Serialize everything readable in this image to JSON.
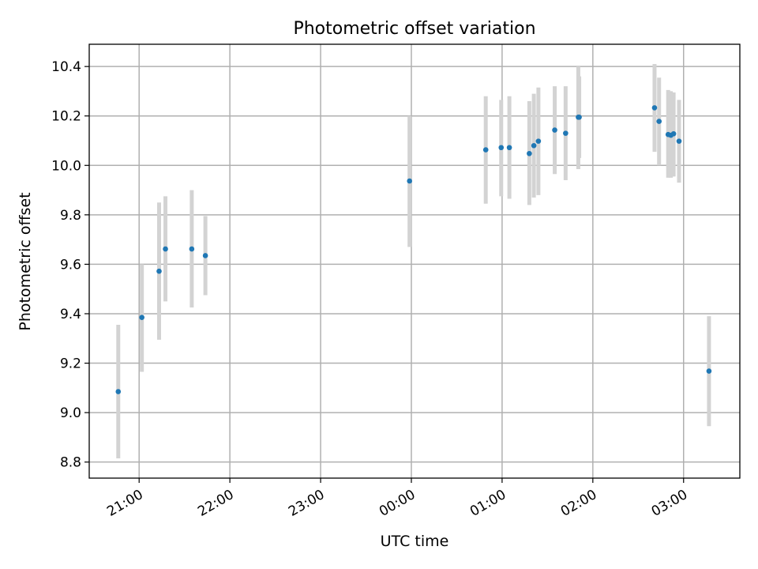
{
  "chart_data": {
    "type": "scatter",
    "title": "Photometric offset variation",
    "xlabel": "UTC time",
    "ylabel": "Photometric offset",
    "x_unit": "hours UTC (hours after 24 are on the following day)",
    "xlim": [
      20.45,
      27.62
    ],
    "ylim": [
      8.735,
      10.49
    ],
    "x_ticks": [
      {
        "value": 21,
        "label": "21:00"
      },
      {
        "value": 22,
        "label": "22:00"
      },
      {
        "value": 23,
        "label": "23:00"
      },
      {
        "value": 24,
        "label": "00:00"
      },
      {
        "value": 25,
        "label": "01:00"
      },
      {
        "value": 26,
        "label": "02:00"
      },
      {
        "value": 27,
        "label": "03:00"
      }
    ],
    "y_ticks": [
      {
        "value": 8.8,
        "label": "8.8"
      },
      {
        "value": 9.0,
        "label": "9.0"
      },
      {
        "value": 9.2,
        "label": "9.2"
      },
      {
        "value": 9.4,
        "label": "9.4"
      },
      {
        "value": 9.6,
        "label": "9.6"
      },
      {
        "value": 9.8,
        "label": "9.8"
      },
      {
        "value": 10.0,
        "label": "10.0"
      },
      {
        "value": 10.2,
        "label": "10.2"
      },
      {
        "value": 10.4,
        "label": "10.4"
      }
    ],
    "grid": true,
    "colors": {
      "point": "#1f77b4",
      "errorbar": "#d3d3d3",
      "grid": "#b0b0b0"
    },
    "points": [
      {
        "x": 20.77,
        "y": 9.085,
        "yerr_low": 8.815,
        "yerr_high": 9.355
      },
      {
        "x": 21.03,
        "y": 9.385,
        "yerr_low": 9.165,
        "yerr_high": 9.6
      },
      {
        "x": 21.22,
        "y": 9.572,
        "yerr_low": 9.295,
        "yerr_high": 9.85
      },
      {
        "x": 21.29,
        "y": 9.662,
        "yerr_low": 9.45,
        "yerr_high": 9.875
      },
      {
        "x": 21.58,
        "y": 9.662,
        "yerr_low": 9.425,
        "yerr_high": 9.9
      },
      {
        "x": 21.73,
        "y": 9.635,
        "yerr_low": 9.475,
        "yerr_high": 9.795
      },
      {
        "x": 23.98,
        "y": 9.937,
        "yerr_low": 9.67,
        "yerr_high": 10.2
      },
      {
        "x": 24.82,
        "y": 10.063,
        "yerr_low": 9.845,
        "yerr_high": 10.28
      },
      {
        "x": 24.99,
        "y": 10.072,
        "yerr_low": 9.875,
        "yerr_high": 10.265
      },
      {
        "x": 25.08,
        "y": 10.072,
        "yerr_low": 9.865,
        "yerr_high": 10.28
      },
      {
        "x": 25.3,
        "y": 10.048,
        "yerr_low": 9.84,
        "yerr_high": 10.26
      },
      {
        "x": 25.35,
        "y": 10.08,
        "yerr_low": 9.87,
        "yerr_high": 10.29
      },
      {
        "x": 25.4,
        "y": 10.098,
        "yerr_low": 9.88,
        "yerr_high": 10.315
      },
      {
        "x": 25.58,
        "y": 10.143,
        "yerr_low": 9.965,
        "yerr_high": 10.32
      },
      {
        "x": 25.7,
        "y": 10.13,
        "yerr_low": 9.94,
        "yerr_high": 10.32
      },
      {
        "x": 25.84,
        "y": 10.195,
        "yerr_low": 9.985,
        "yerr_high": 10.4
      },
      {
        "x": 25.85,
        "y": 10.195,
        "yerr_low": 10.03,
        "yerr_high": 10.36
      },
      {
        "x": 26.68,
        "y": 10.233,
        "yerr_low": 10.055,
        "yerr_high": 10.41
      },
      {
        "x": 26.73,
        "y": 10.178,
        "yerr_low": 10.0,
        "yerr_high": 10.355
      },
      {
        "x": 26.83,
        "y": 10.125,
        "yerr_low": 9.95,
        "yerr_high": 10.305
      },
      {
        "x": 26.86,
        "y": 10.122,
        "yerr_low": 9.95,
        "yerr_high": 10.3
      },
      {
        "x": 26.89,
        "y": 10.128,
        "yerr_low": 9.955,
        "yerr_high": 10.295
      },
      {
        "x": 26.95,
        "y": 10.098,
        "yerr_low": 9.93,
        "yerr_high": 10.265
      },
      {
        "x": 27.28,
        "y": 9.168,
        "yerr_low": 8.945,
        "yerr_high": 9.39
      }
    ]
  }
}
